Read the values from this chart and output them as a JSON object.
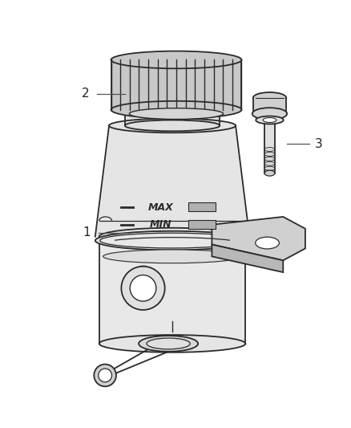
{
  "background_color": "#ffffff",
  "line_color": "#2a2a2a",
  "text_color": "#222222",
  "figsize": [
    4.38,
    5.33
  ],
  "dpi": 100,
  "cap_ribs": 14,
  "cap_color": "#c8c8c8",
  "body_color": "#e8e8e8",
  "bracket_color": "#d0d0d0"
}
